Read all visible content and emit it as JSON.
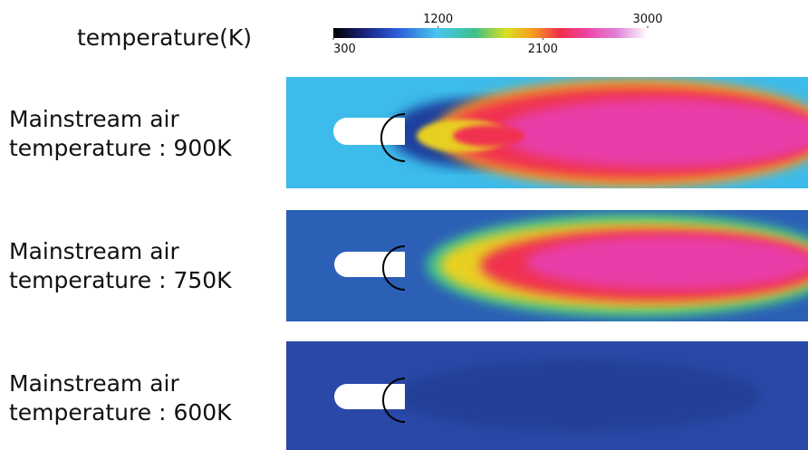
{
  "colorbar": {
    "title": "temperature(K)",
    "ticks": [
      300,
      1200,
      2100,
      3000
    ]
  },
  "panels": [
    {
      "line1": "Mainstream air",
      "line2": "temperature : 900K"
    },
    {
      "line1": "Mainstream air",
      "line2": "temperature : 750K"
    },
    {
      "line1": "Mainstream air",
      "line2": "temperature : 600K"
    }
  ]
}
